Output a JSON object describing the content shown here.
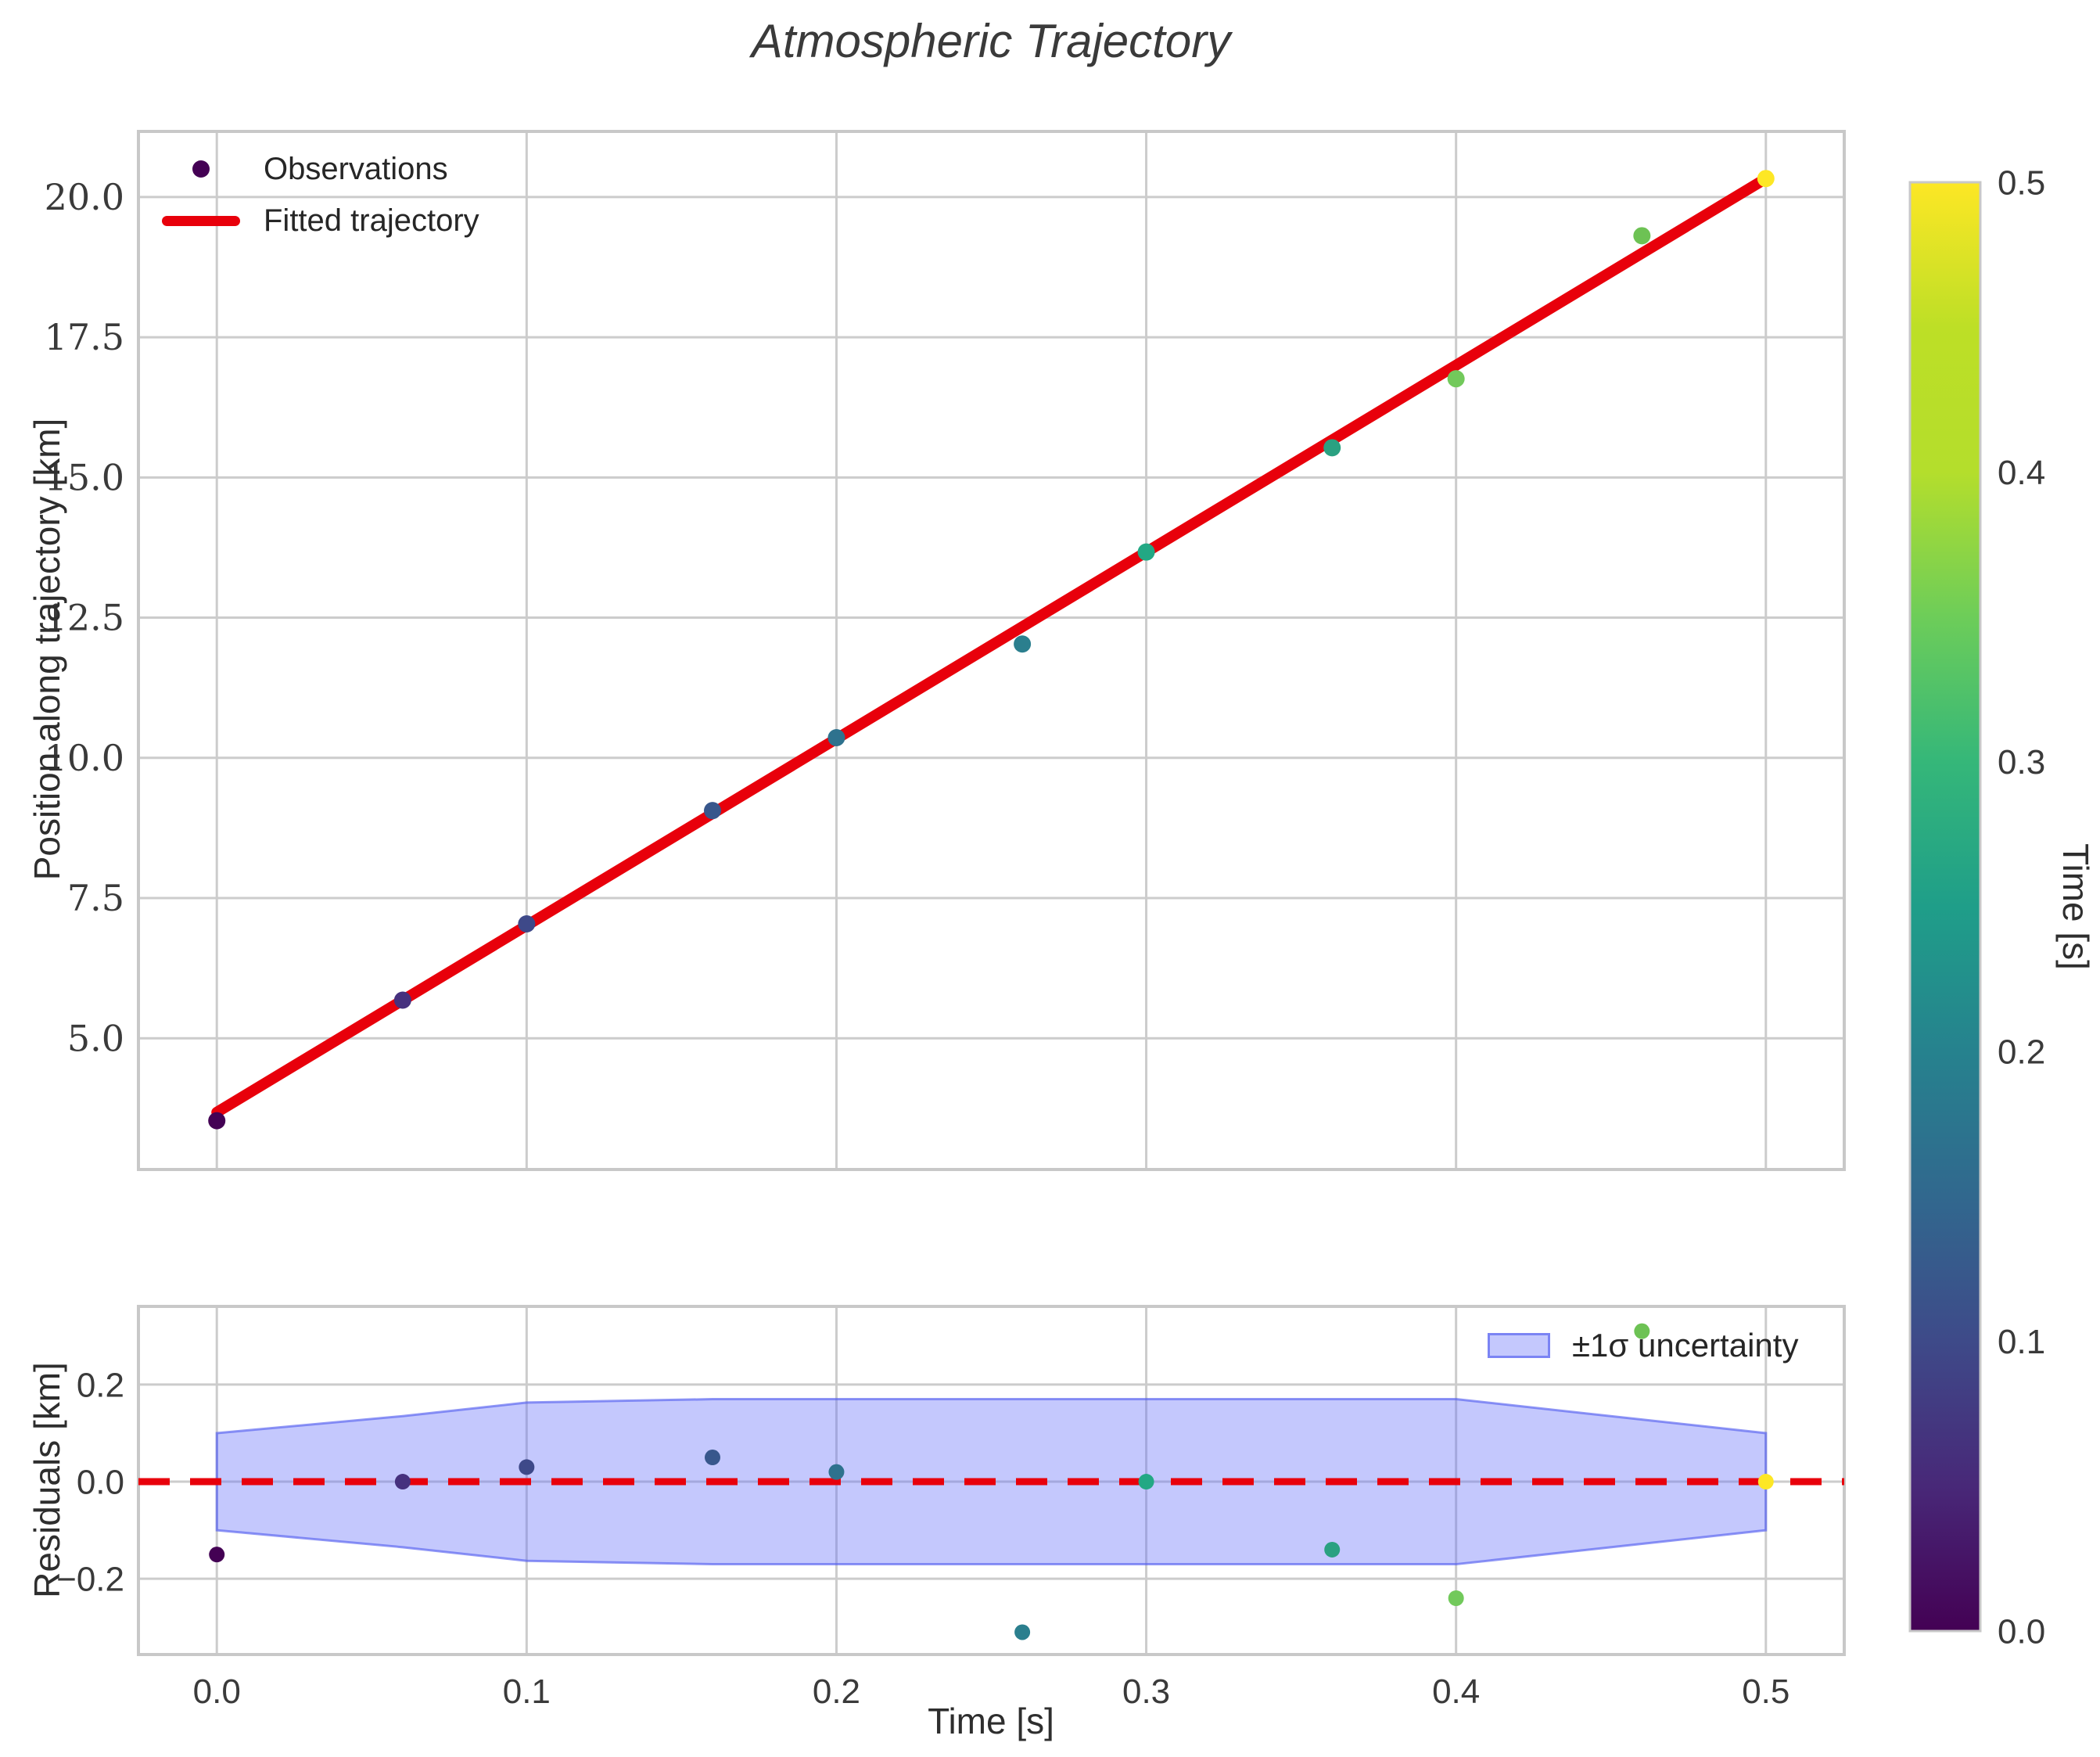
{
  "figure": {
    "title": "Atmospheric Trajectory",
    "background": "#ffffff",
    "grid_color": "#cccccc",
    "spine_color": "#c8c8c8",
    "accent_red": "#e8000b",
    "band_fill": "rgba(99,110,250,0.38)",
    "band_edge": "rgba(84,96,240,0.65)"
  },
  "chart_data": [
    {
      "id": "trajectory-panel",
      "type": "scatter",
      "title": "Atmospheric Trajectory",
      "xlabel": "",
      "ylabel": "Position along trajectory [km]",
      "xlim": [
        -0.0253,
        0.5253
      ],
      "ylim": [
        2.66,
        21.17
      ],
      "xticks": [
        0.0,
        0.1,
        0.2,
        0.3,
        0.4,
        0.5
      ],
      "xtick_labels_visible": false,
      "yticks": [
        5.0,
        7.5,
        10.0,
        12.5,
        15.0,
        17.5,
        20.0
      ],
      "ytick_labels": [
        "5.0",
        "7.5",
        "10.0",
        "12.5",
        "15.0",
        "17.5",
        "20.0"
      ],
      "grid": true,
      "legend": {
        "position": "upper-left",
        "observations": "Observations",
        "fitted": "Fitted trajectory"
      },
      "series": [
        {
          "name": "Observations",
          "type": "scatter",
          "colormap": "viridis",
          "color_by": "Time [s]",
          "x": [
            0.0,
            0.06,
            0.1,
            0.16,
            0.2,
            0.26,
            0.3,
            0.36,
            0.4,
            0.46,
            0.5
          ],
          "y": [
            3.53,
            5.68,
            7.04,
            9.06,
            10.36,
            12.03,
            13.67,
            15.53,
            16.76,
            19.31,
            20.33
          ],
          "colors": [
            "#440154",
            "#46317e",
            "#3e4989",
            "#38578c",
            "#2e728e",
            "#2b7f8e",
            "#23a884",
            "#2aa181",
            "#72c95b",
            "#6dc254",
            "#fde725"
          ]
        },
        {
          "name": "Fitted trajectory",
          "type": "line",
          "color": "#e8000b",
          "intercept_km": 3.68,
          "slope_km_per_s": 33.3,
          "x_start": 0.0,
          "x_end": 0.5
        }
      ]
    },
    {
      "id": "residuals-panel",
      "type": "scatter",
      "xlabel": "Time [s]",
      "ylabel": "Residuals [km]",
      "xlim": [
        -0.0253,
        0.5253
      ],
      "ylim": [
        -0.356,
        0.361
      ],
      "xticks": [
        0.0,
        0.1,
        0.2,
        0.3,
        0.4,
        0.5
      ],
      "xtick_labels": [
        "0.0",
        "0.1",
        "0.2",
        "0.3",
        "0.4",
        "0.5"
      ],
      "yticks": [
        -0.2,
        0.0,
        0.2
      ],
      "ytick_labels": [
        "−0.2",
        "0.0",
        "0.2"
      ],
      "grid": true,
      "zero_line": {
        "y": 0.0,
        "style": "dashed",
        "color": "#e8000b"
      },
      "legend": {
        "position": "upper-right",
        "band_label": "±1σ uncertainty"
      },
      "band": {
        "name": "±1σ uncertainty",
        "x": [
          0.0,
          0.06,
          0.1,
          0.16,
          0.2,
          0.26,
          0.3,
          0.36,
          0.4,
          0.46,
          0.5
        ],
        "upper": [
          0.1,
          0.135,
          0.163,
          0.17,
          0.17,
          0.17,
          0.17,
          0.17,
          0.17,
          0.128,
          0.1
        ],
        "lower": [
          -0.1,
          -0.135,
          -0.163,
          -0.17,
          -0.17,
          -0.17,
          -0.17,
          -0.17,
          -0.17,
          -0.128,
          -0.1
        ]
      },
      "points": {
        "x": [
          0.0,
          0.06,
          0.1,
          0.16,
          0.2,
          0.26,
          0.3,
          0.36,
          0.4,
          0.46,
          0.5
        ],
        "y": [
          -0.15,
          0.0,
          0.03,
          0.05,
          0.02,
          -0.31,
          0.0,
          -0.14,
          -0.24,
          0.31,
          0.0
        ],
        "colors": [
          "#440154",
          "#46317e",
          "#3e4989",
          "#38578c",
          "#2e728e",
          "#2b7f8e",
          "#23a884",
          "#2aa181",
          "#72c95b",
          "#6dc254",
          "#fde725"
        ]
      }
    },
    {
      "id": "colorbar",
      "type": "colorbar",
      "label": "Time [s]",
      "colormap": "viridis",
      "vmin": 0.0,
      "vmax": 0.5,
      "ticks": [
        0.0,
        0.1,
        0.2,
        0.3,
        0.4,
        0.5
      ],
      "tick_labels": [
        "0.0",
        "0.1",
        "0.2",
        "0.3",
        "0.4",
        "0.5"
      ],
      "stops": [
        "#440154",
        "#482878",
        "#3e4a89",
        "#31688e",
        "#26828e",
        "#1f9e89",
        "#35b779",
        "#6dcd59",
        "#b4de2c",
        "#bddf26",
        "#fde725"
      ]
    }
  ]
}
